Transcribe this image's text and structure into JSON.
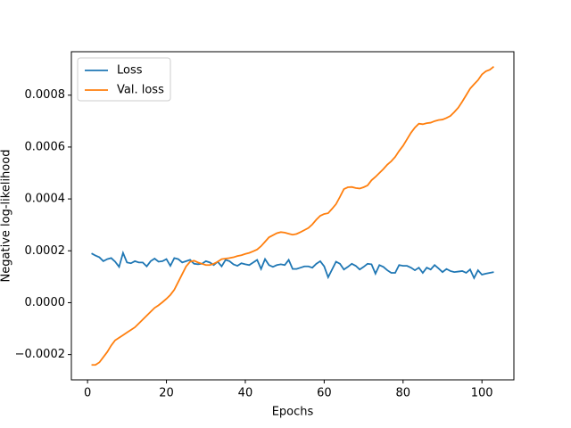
{
  "chart_data": {
    "type": "line",
    "xlabel": "Epochs",
    "ylabel": "Negative log-likelihood",
    "x": [
      1,
      2,
      3,
      4,
      5,
      6,
      7,
      8,
      9,
      10,
      11,
      12,
      13,
      14,
      15,
      16,
      17,
      18,
      19,
      20,
      21,
      22,
      23,
      24,
      25,
      26,
      27,
      28,
      29,
      30,
      31,
      32,
      33,
      34,
      35,
      36,
      37,
      38,
      39,
      40,
      41,
      42,
      43,
      44,
      45,
      46,
      47,
      48,
      49,
      50,
      51,
      52,
      53,
      54,
      55,
      56,
      57,
      58,
      59,
      60,
      61,
      62,
      63,
      64,
      65,
      66,
      67,
      68,
      69,
      70,
      71,
      72,
      73,
      74,
      75,
      76,
      77,
      78,
      79,
      80,
      81,
      82,
      83,
      84,
      85,
      86,
      87,
      88,
      89,
      90,
      91,
      92,
      93,
      94,
      95,
      96,
      97,
      98,
      99,
      100,
      101,
      102,
      103
    ],
    "series": [
      {
        "name": "Loss",
        "color": "#1f77b4",
        "values": [
          0.00019,
          0.000182,
          0.000175,
          0.00016,
          0.000168,
          0.000172,
          0.000158,
          0.000138,
          0.000192,
          0.000155,
          0.000152,
          0.00016,
          0.000155,
          0.000155,
          0.00014,
          0.00016,
          0.00017,
          0.000158,
          0.00016,
          0.000168,
          0.000142,
          0.000172,
          0.000168,
          0.000155,
          0.00016,
          0.000165,
          0.00015,
          0.000148,
          0.00015,
          0.00016,
          0.000155,
          0.000145,
          0.000158,
          0.00014,
          0.000165,
          0.00016,
          0.000148,
          0.000142,
          0.000152,
          0.000148,
          0.000145,
          0.000155,
          0.000165,
          0.00013,
          0.000168,
          0.000145,
          0.000138,
          0.000145,
          0.000148,
          0.000145,
          0.000165,
          0.00013,
          0.00013,
          0.000135,
          0.00014,
          0.00014,
          0.000135,
          0.00015,
          0.00016,
          0.00014,
          9.8e-05,
          0.000128,
          0.000158,
          0.00015,
          0.000128,
          0.000138,
          0.00015,
          0.000142,
          0.000128,
          0.000138,
          0.00015,
          0.000148,
          0.000112,
          0.000145,
          0.000138,
          0.000125,
          0.000115,
          0.000115,
          0.000145,
          0.000142,
          0.000142,
          0.000135,
          0.000125,
          0.000135,
          0.000115,
          0.000135,
          0.000128,
          0.000145,
          0.000132,
          0.000118,
          0.00013,
          0.000122,
          0.000118,
          0.00012,
          0.000122,
          0.000115,
          0.000128,
          9.5e-05,
          0.000125,
          0.000108,
          0.000112,
          0.000115,
          0.000118
        ]
      },
      {
        "name": "Val. loss",
        "color": "#ff7f0e",
        "values": [
          -0.00024,
          -0.00024,
          -0.00023,
          -0.00021,
          -0.00019,
          -0.000165,
          -0.000145,
          -0.000135,
          -0.000125,
          -0.000115,
          -0.000105,
          -9.5e-05,
          -8e-05,
          -6.5e-05,
          -5e-05,
          -3.5e-05,
          -2e-05,
          -1e-05,
          2e-06,
          1.5e-05,
          3e-05,
          5e-05,
          8e-05,
          0.00011,
          0.00014,
          0.000158,
          0.000162,
          0.000155,
          0.00015,
          0.000145,
          0.000145,
          0.00015,
          0.000158,
          0.000168,
          0.00017,
          0.000172,
          0.000175,
          0.00018,
          0.000183,
          0.000188,
          0.000192,
          0.000198,
          0.000205,
          0.000218,
          0.000235,
          0.000252,
          0.00026,
          0.000268,
          0.000272,
          0.00027,
          0.000266,
          0.000262,
          0.000265,
          0.000272,
          0.00028,
          0.000288,
          0.000302,
          0.00032,
          0.000335,
          0.000342,
          0.000345,
          0.000362,
          0.00038,
          0.000408,
          0.000438,
          0.000445,
          0.000446,
          0.000442,
          0.00044,
          0.000445,
          0.000452,
          0.000472,
          0.000485,
          0.0005,
          0.000515,
          0.000532,
          0.000545,
          0.000562,
          0.000585,
          0.000605,
          0.00063,
          0.000655,
          0.000675,
          0.00069,
          0.000688,
          0.000692,
          0.000694,
          0.0007,
          0.000704,
          0.000706,
          0.000712,
          0.00072,
          0.000735,
          0.000752,
          0.000775,
          0.0008,
          0.000825,
          0.000842,
          0.000858,
          0.00088,
          0.000892,
          0.000898,
          0.00091
        ]
      }
    ],
    "xlim": [
      -4.1,
      108.1
    ],
    "xticks": [
      0,
      20,
      40,
      60,
      80,
      100
    ],
    "ylim": [
      -0.0002975,
      0.0009675
    ],
    "yticks": [
      {
        "value": -0.0002,
        "label": "−0.0002"
      },
      {
        "value": 0,
        "label": "0.0000"
      },
      {
        "value": 0.0002,
        "label": "0.0002"
      },
      {
        "value": 0.0004,
        "label": "0.0004"
      },
      {
        "value": 0.0006,
        "label": "0.0006"
      },
      {
        "value": 0.0008,
        "label": "0.0008"
      }
    ],
    "legend": "upper left"
  }
}
